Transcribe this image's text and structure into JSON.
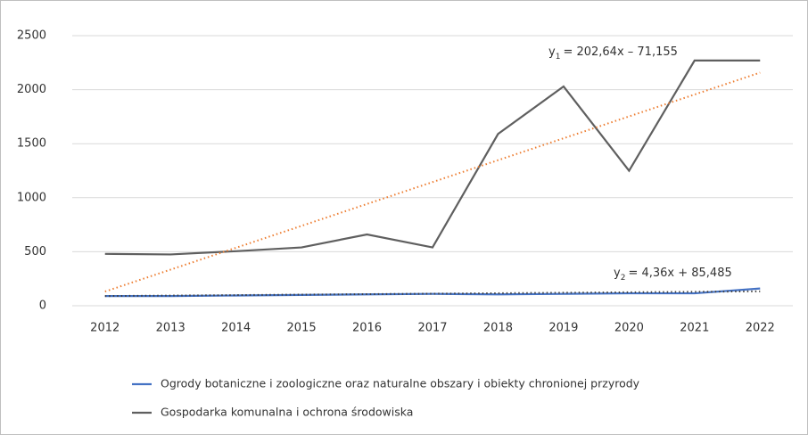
{
  "chart_data": {
    "type": "line",
    "categories": [
      "2012",
      "2013",
      "2014",
      "2015",
      "2016",
      "2017",
      "2018",
      "2019",
      "2020",
      "2021",
      "2022"
    ],
    "ylim": [
      0,
      2500
    ],
    "yticks": [
      0,
      500,
      1000,
      1500,
      2000,
      2500
    ],
    "grid": true,
    "legend": "bottom",
    "series": [
      {
        "name": "Ogrody botaniczne i zoologiczne oraz naturalne obszary i obiekty chronionej przyrody",
        "color": "#4472c4",
        "values": [
          90,
          90,
          95,
          100,
          105,
          110,
          105,
          110,
          115,
          115,
          160
        ],
        "trendline": {
          "slope": 4.36,
          "intercept": 85.485,
          "color": "#404040",
          "label": {
            "variable": "y",
            "subscript": "2",
            "equation": "= 4,36x + 85,485"
          }
        }
      },
      {
        "name": "Gospodarka komunalna i ochrona środowiska",
        "color": "#5f5f5f",
        "values": [
          480,
          475,
          505,
          540,
          660,
          540,
          1590,
          2030,
          1250,
          2270,
          2270
        ],
        "trendline": {
          "slope": 202.64,
          "intercept": -71.155,
          "color": "#ed7d31",
          "label": {
            "variable": "y",
            "subscript": "1",
            "equation": "= 202,64x – 71,155"
          }
        }
      }
    ]
  }
}
